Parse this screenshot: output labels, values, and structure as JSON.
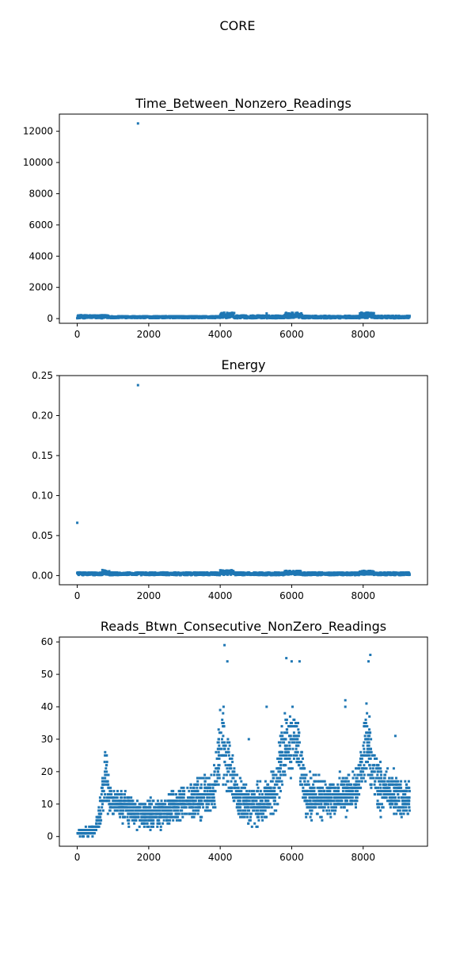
{
  "figure": {
    "suptitle": "CORE",
    "marker_color": "#1f77b4"
  },
  "chart_data": [
    {
      "type": "scatter",
      "title": "Time_Between_Nonzero_Readings",
      "xlabel": "",
      "ylabel": "",
      "xlim": [
        -500,
        9800
      ],
      "ylim": [
        -300,
        13100
      ],
      "xticks": [
        0,
        2000,
        4000,
        6000,
        8000
      ],
      "yticks": [
        0,
        2000,
        4000,
        6000,
        8000,
        10000,
        12000
      ],
      "ytick_labels": [
        "0",
        "2000",
        "4000",
        "6000",
        "8000",
        "10000",
        "12000"
      ],
      "grid": false,
      "approx_points": 9300,
      "band": [
        {
          "x_from": 0,
          "x_to": 900,
          "low": 20,
          "high": 220
        },
        {
          "x_from": 900,
          "x_to": 4000,
          "low": 30,
          "high": 160
        },
        {
          "x_from": 4000,
          "x_to": 4400,
          "low": 40,
          "high": 380
        },
        {
          "x_from": 4400,
          "x_to": 5800,
          "low": 20,
          "high": 200
        },
        {
          "x_from": 5800,
          "x_to": 6300,
          "low": 40,
          "high": 380
        },
        {
          "x_from": 6300,
          "x_to": 7900,
          "low": 20,
          "high": 180
        },
        {
          "x_from": 7900,
          "x_to": 8300,
          "low": 40,
          "high": 380
        },
        {
          "x_from": 8300,
          "x_to": 9300,
          "low": 20,
          "high": 180
        }
      ],
      "outliers": [
        {
          "x": 1700,
          "y": 12500
        },
        {
          "x": 5300,
          "y": 330
        }
      ]
    },
    {
      "type": "scatter",
      "title": "Energy",
      "xlabel": "",
      "ylabel": "",
      "xlim": [
        -500,
        9800
      ],
      "ylim": [
        -0.0115,
        0.25
      ],
      "xticks": [
        0,
        2000,
        4000,
        6000,
        8000
      ],
      "yticks": [
        0.0,
        0.05,
        0.1,
        0.15,
        0.2,
        0.25
      ],
      "ytick_labels": [
        "0.00",
        "0.05",
        "0.10",
        "0.15",
        "0.20",
        "0.25"
      ],
      "grid": false,
      "approx_points": 9300,
      "band": [
        {
          "x_from": 0,
          "x_to": 700,
          "low": 0.0005,
          "high": 0.004
        },
        {
          "x_from": 700,
          "x_to": 900,
          "low": 0.001,
          "high": 0.007
        },
        {
          "x_from": 900,
          "x_to": 4000,
          "low": 0.0005,
          "high": 0.004
        },
        {
          "x_from": 4000,
          "x_to": 4400,
          "low": 0.001,
          "high": 0.007
        },
        {
          "x_from": 4400,
          "x_to": 5800,
          "low": 0.0005,
          "high": 0.004
        },
        {
          "x_from": 5800,
          "x_to": 6300,
          "low": 0.001,
          "high": 0.006
        },
        {
          "x_from": 6300,
          "x_to": 7900,
          "low": 0.0005,
          "high": 0.004
        },
        {
          "x_from": 7900,
          "x_to": 8300,
          "low": 0.001,
          "high": 0.006
        },
        {
          "x_from": 8300,
          "x_to": 9300,
          "low": 0.0005,
          "high": 0.004
        }
      ],
      "outliers": [
        {
          "x": 1700,
          "y": 0.238
        },
        {
          "x": 0,
          "y": 0.066
        }
      ]
    },
    {
      "type": "scatter",
      "title": "Reads_Btwn_Consecutive_NonZero_Readings",
      "xlabel": "",
      "ylabel": "",
      "xlim": [
        -500,
        9800
      ],
      "ylim": [
        -3,
        61.5
      ],
      "xticks": [
        0,
        2000,
        4000,
        6000,
        8000
      ],
      "yticks": [
        0,
        10,
        20,
        30,
        40,
        50,
        60
      ],
      "ytick_labels": [
        "0",
        "10",
        "20",
        "30",
        "40",
        "50",
        "60"
      ],
      "grid": false,
      "approx_points": 9300,
      "envelope": [
        {
          "x": 0,
          "low": 0,
          "high": 2
        },
        {
          "x": 500,
          "low": 0,
          "high": 4
        },
        {
          "x": 700,
          "low": 2,
          "high": 20
        },
        {
          "x": 800,
          "low": 5,
          "high": 34
        },
        {
          "x": 900,
          "low": 4,
          "high": 18
        },
        {
          "x": 1300,
          "low": 3,
          "high": 15
        },
        {
          "x": 1800,
          "low": 1,
          "high": 13
        },
        {
          "x": 2300,
          "low": 1,
          "high": 13
        },
        {
          "x": 3000,
          "low": 3,
          "high": 18
        },
        {
          "x": 3800,
          "low": 5,
          "high": 22
        },
        {
          "x": 4050,
          "low": 14,
          "high": 46
        },
        {
          "x": 4300,
          "low": 10,
          "high": 30
        },
        {
          "x": 4500,
          "low": 3,
          "high": 20
        },
        {
          "x": 5000,
          "low": 1,
          "high": 18
        },
        {
          "x": 5500,
          "low": 4,
          "high": 22
        },
        {
          "x": 5850,
          "low": 14,
          "high": 46
        },
        {
          "x": 6200,
          "low": 15,
          "high": 40
        },
        {
          "x": 6400,
          "low": 3,
          "high": 22
        },
        {
          "x": 7000,
          "low": 3,
          "high": 20
        },
        {
          "x": 7800,
          "low": 6,
          "high": 22
        },
        {
          "x": 8100,
          "low": 15,
          "high": 44
        },
        {
          "x": 8400,
          "low": 5,
          "high": 25
        },
        {
          "x": 9000,
          "low": 3,
          "high": 22
        },
        {
          "x": 9300,
          "low": 3,
          "high": 22
        }
      ],
      "outliers": [
        {
          "x": 4120,
          "y": 59
        },
        {
          "x": 5850,
          "y": 55
        },
        {
          "x": 8200,
          "y": 56
        },
        {
          "x": 8150,
          "y": 54
        },
        {
          "x": 4200,
          "y": 54
        },
        {
          "x": 6000,
          "y": 54
        },
        {
          "x": 6220,
          "y": 54
        },
        {
          "x": 5300,
          "y": 40
        },
        {
          "x": 7500,
          "y": 42
        },
        {
          "x": 7500,
          "y": 40
        },
        {
          "x": 4800,
          "y": 30
        },
        {
          "x": 8900,
          "y": 31
        }
      ]
    }
  ]
}
